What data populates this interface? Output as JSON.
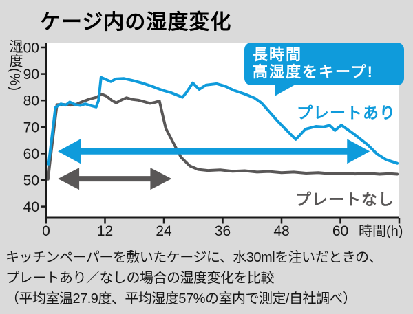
{
  "title": "ケージ内の湿度変化",
  "callout": {
    "line1": "長時間",
    "line2": "高湿度をキープ!"
  },
  "series_labels": {
    "with_plate": "プレートあり",
    "without_plate": "プレートなし"
  },
  "caption": {
    "line1": "キッチンペーパーを敷いたケージに、水30mlを注いだときの、",
    "line2": "プレートあり／なしの場合の湿度変化を比較",
    "line3": "（平均室温27.9度、平均湿度57%の室内で測定/自社調べ）"
  },
  "colors": {
    "blue": "#0f9bdb",
    "gray": "#595757",
    "bg": "#dadada",
    "plot_bg": "#ffffff",
    "axis": "#1a1a1a",
    "text": "#161616",
    "callout_text": "#ffffff"
  },
  "chart_data": {
    "type": "line",
    "title": "ケージ内の湿度変化",
    "xlabel": "時間(h)",
    "ylabel": "湿度(%)",
    "xlim": [
      0,
      72
    ],
    "ylim": [
      40,
      100
    ],
    "grid": false,
    "x_ticks": [
      0,
      12,
      24,
      36,
      48,
      60
    ],
    "y_ticks": [
      40,
      50,
      60,
      70,
      80,
      90,
      100
    ],
    "series": [
      {
        "name": "プレートあり",
        "color": "#0f9bdb",
        "points": [
          [
            0.5,
            56
          ],
          [
            0.9,
            62
          ],
          [
            1.9,
            77.3
          ],
          [
            3,
            78.7
          ],
          [
            4,
            78.2
          ],
          [
            4.8,
            79.4
          ],
          [
            6,
            78.4
          ],
          [
            7,
            78.1
          ],
          [
            8,
            78.7
          ],
          [
            9,
            78.1
          ],
          [
            10.2,
            77.5
          ],
          [
            10.7,
            80
          ],
          [
            11.2,
            88.7
          ],
          [
            13.2,
            87.1
          ],
          [
            14.2,
            88.1
          ],
          [
            15.8,
            88.3
          ],
          [
            17.5,
            87.6
          ],
          [
            19.5,
            86.6
          ],
          [
            21.5,
            85.4
          ],
          [
            23.5,
            84
          ],
          [
            25.5,
            82.9
          ],
          [
            27.8,
            81.2
          ],
          [
            28.6,
            83
          ],
          [
            29.9,
            86.6
          ],
          [
            31.2,
            84.2
          ],
          [
            32.6,
            85.8
          ],
          [
            34.8,
            86.3
          ],
          [
            36.5,
            85.4
          ],
          [
            38.3,
            83.8
          ],
          [
            40.5,
            82.4
          ],
          [
            42.5,
            80.9
          ],
          [
            43.9,
            79.1
          ],
          [
            45.3,
            76.2
          ],
          [
            47.2,
            72.2
          ],
          [
            49,
            68.8
          ],
          [
            50.9,
            65.3
          ],
          [
            52.9,
            69.2
          ],
          [
            55,
            70.2
          ],
          [
            56.5,
            70
          ],
          [
            57.8,
            70.6
          ],
          [
            58.9,
            68.7
          ],
          [
            60.2,
            70.7
          ],
          [
            61.5,
            69
          ],
          [
            63,
            67
          ],
          [
            65.5,
            63.4
          ],
          [
            67.5,
            59.8
          ],
          [
            69.3,
            57.7
          ],
          [
            71.6,
            56.3
          ]
        ]
      },
      {
        "name": "プレートなし",
        "color": "#595757",
        "points": [
          [
            0.4,
            50.3
          ],
          [
            0.8,
            57
          ],
          [
            2.2,
            78.4
          ],
          [
            3.5,
            78.5
          ],
          [
            5,
            78.2
          ],
          [
            6.2,
            78.6
          ],
          [
            7.5,
            79.6
          ],
          [
            9,
            80.6
          ],
          [
            10.3,
            81.2
          ],
          [
            11.3,
            82.4
          ],
          [
            12.3,
            81.6
          ],
          [
            13.4,
            80
          ],
          [
            14.3,
            79.1
          ],
          [
            15.4,
            80.2
          ],
          [
            16.4,
            81
          ],
          [
            17.5,
            80.4
          ],
          [
            18.8,
            80.1
          ],
          [
            20,
            79.5
          ],
          [
            21.2,
            78.9
          ],
          [
            22.2,
            79.3
          ],
          [
            23.1,
            79.8
          ],
          [
            24.4,
            69.5
          ],
          [
            25.8,
            64.5
          ],
          [
            27.5,
            58.6
          ],
          [
            29.3,
            55.3
          ],
          [
            31,
            54
          ],
          [
            33,
            53.6
          ],
          [
            35.5,
            53.8
          ],
          [
            38,
            53.3
          ],
          [
            40.5,
            53.5
          ],
          [
            43,
            53
          ],
          [
            45.5,
            53.2
          ],
          [
            48,
            52.8
          ],
          [
            50.5,
            53
          ],
          [
            53,
            52.6
          ],
          [
            55.5,
            52.8
          ],
          [
            58,
            52.4
          ],
          [
            60.5,
            52.6
          ],
          [
            63,
            52.3
          ],
          [
            65.5,
            52.5
          ],
          [
            68,
            52.2
          ],
          [
            70,
            52.4
          ],
          [
            71.6,
            52.2
          ]
        ]
      }
    ],
    "annotations": {
      "arrows": [
        {
          "name": "duration-arrow-with-plate",
          "color": "#0f9bdb",
          "from_h": 2.4,
          "to_h": 66,
          "at_percent": 60.8,
          "head_length": 33,
          "head_height": 18,
          "shaft_width": 9
        },
        {
          "name": "duration-arrow-without-plate",
          "color": "#595757",
          "from_h": 2.4,
          "to_h": 25.6,
          "at_percent": 50.5,
          "head_length": 31,
          "head_height": 16,
          "shaft_width": 8
        }
      ]
    }
  }
}
